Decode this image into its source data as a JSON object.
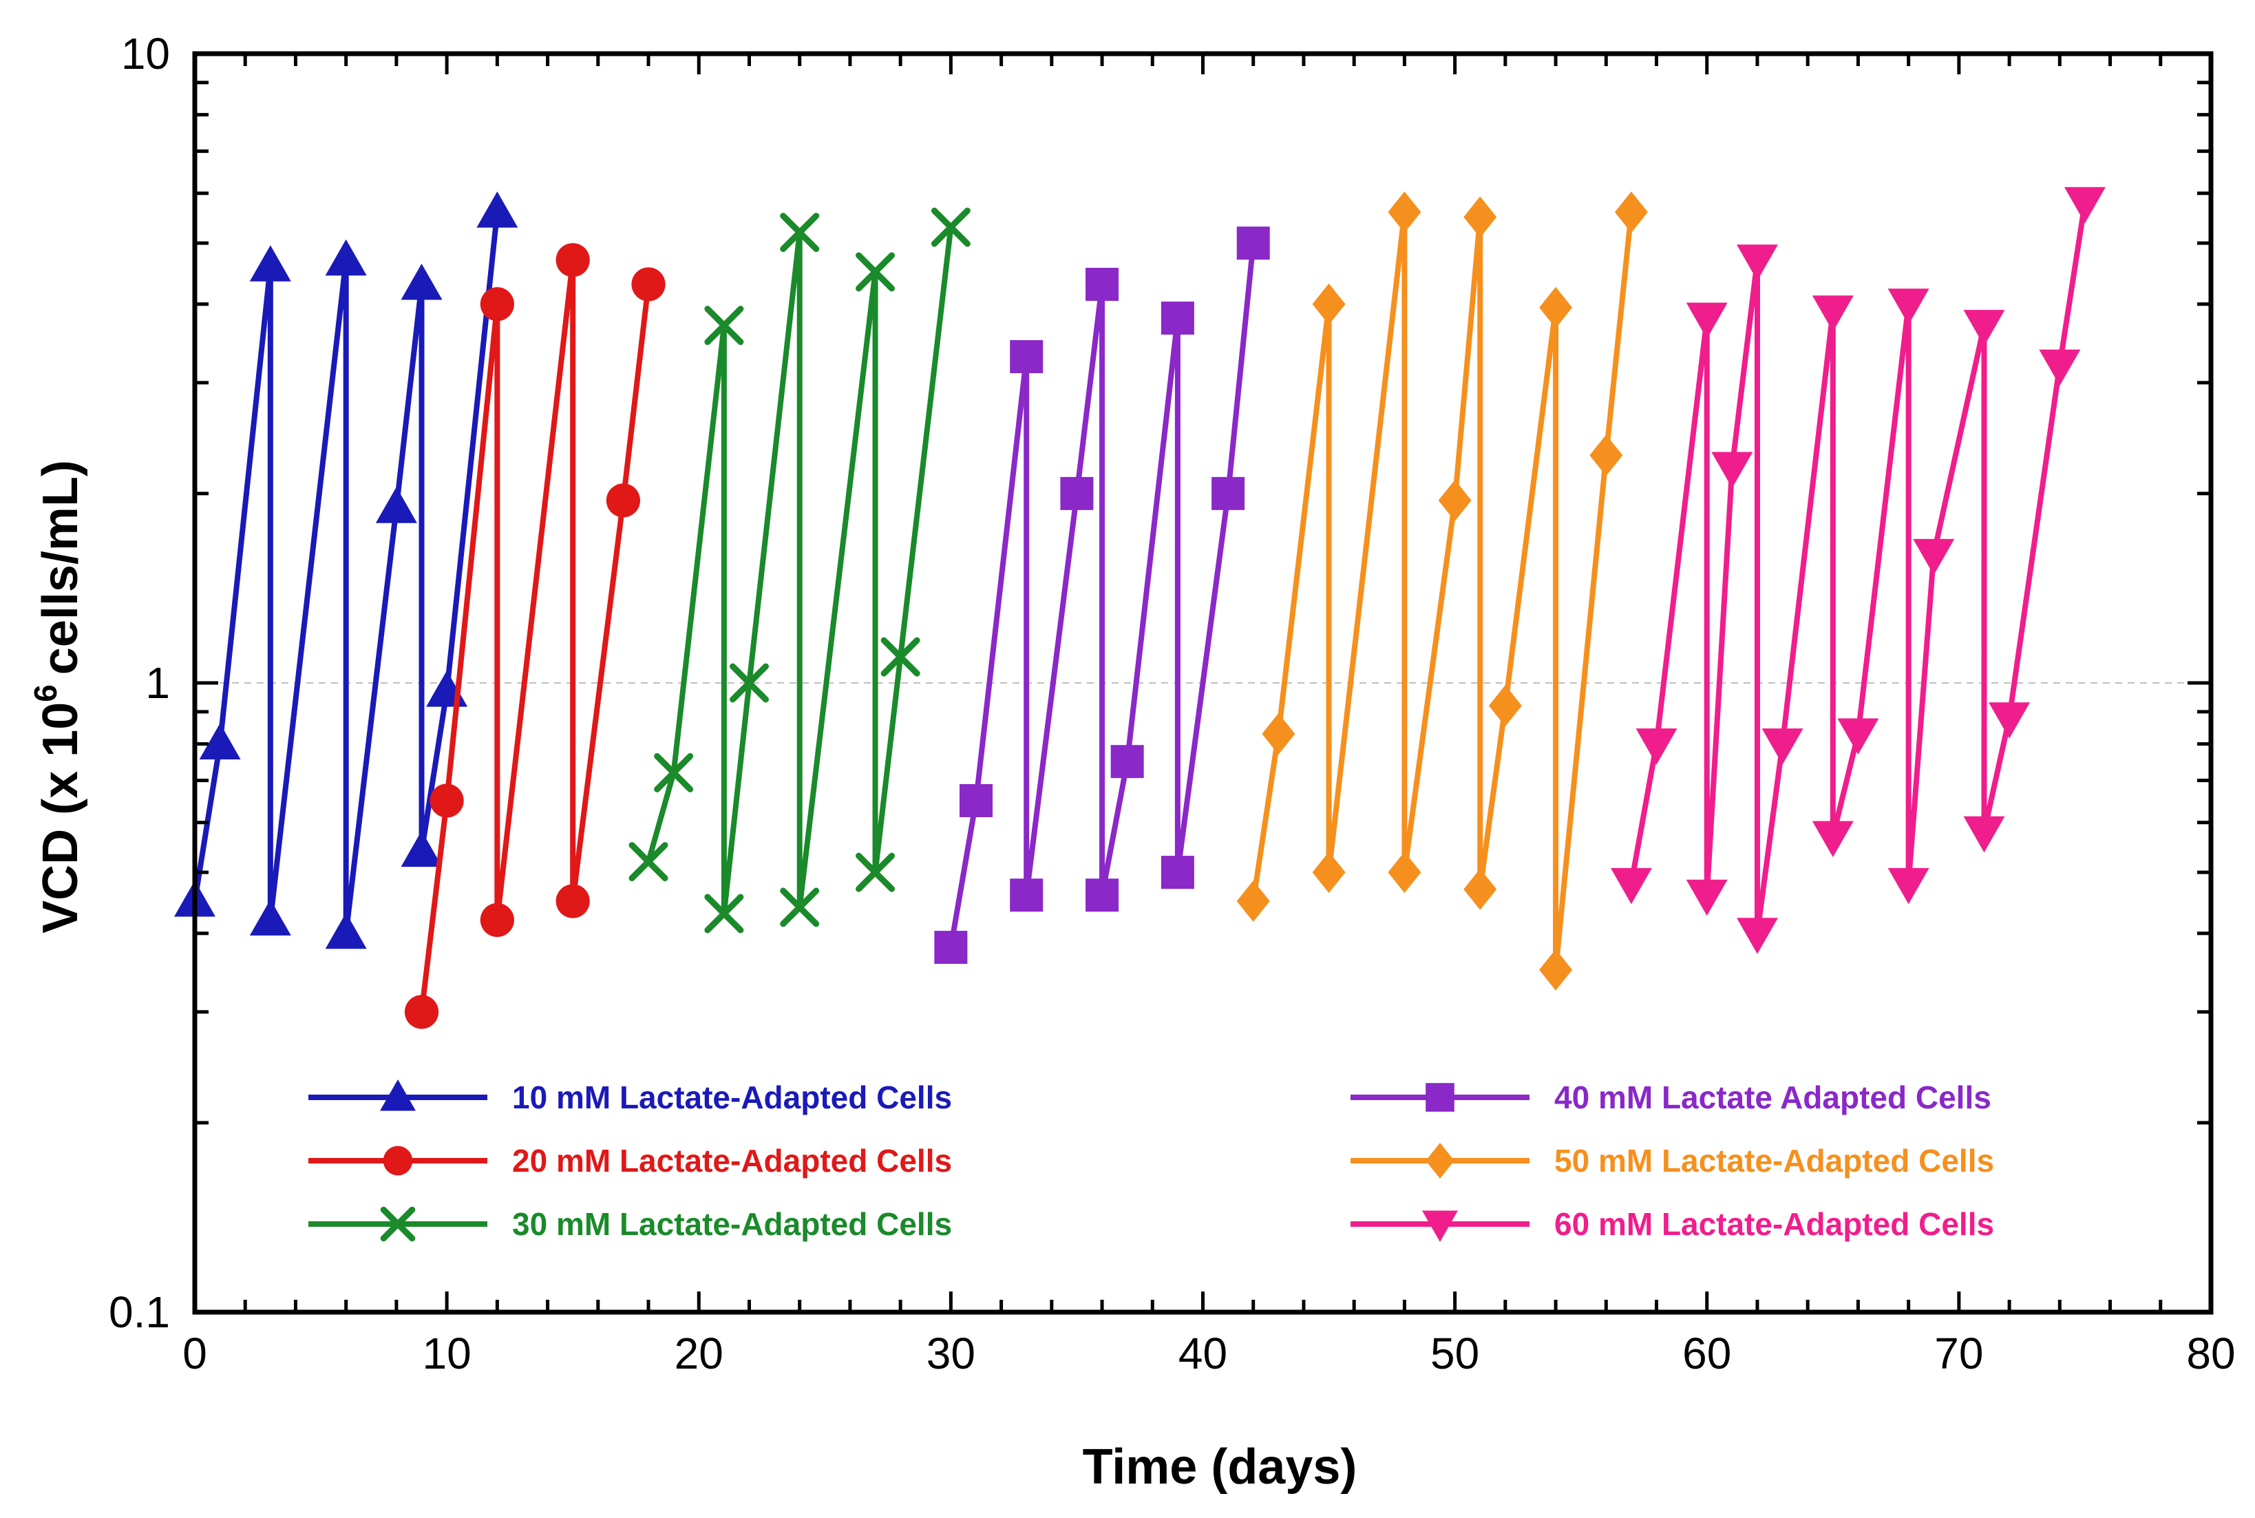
{
  "chart_data": {
    "type": "line",
    "title": "",
    "xlabel": "Time (days)",
    "ylabel": {
      "prefix": "VCD (x 10",
      "superscript": "6",
      "suffix": "cells/mL)"
    },
    "xlim": [
      0,
      80
    ],
    "ylim": [
      0.1,
      10
    ],
    "yscale": "log",
    "x_ticks": [
      0,
      10,
      20,
      30,
      40,
      50,
      60,
      70,
      80
    ],
    "x_tick_labels": [
      "0",
      "10",
      "20",
      "30",
      "40",
      "50",
      "60",
      "70",
      "80"
    ],
    "y_ticks": [
      0.1,
      1,
      10
    ],
    "y_tick_labels": [
      "0.1",
      "1",
      "10"
    ],
    "reference_line": 1,
    "series": [
      {
        "name": "10 mM Lactate-Adapted Cells",
        "color": "#1a1ab8",
        "marker": "triangle-up",
        "x": [
          0,
          1,
          3,
          3,
          6,
          6,
          8,
          9,
          9,
          10,
          12
        ],
        "y": [
          0.45,
          0.8,
          4.6,
          0.42,
          4.7,
          0.4,
          1.9,
          4.3,
          0.54,
          0.97,
          5.6
        ]
      },
      {
        "name": "20 mM Lactate-Adapted Cells",
        "color": "#e01818",
        "marker": "circle",
        "x": [
          9,
          10,
          12,
          12,
          15,
          15,
          17,
          18
        ],
        "y": [
          0.3,
          0.65,
          4.0,
          0.42,
          4.7,
          0.45,
          1.95,
          4.3
        ]
      },
      {
        "name": "30 mM Lactate-Adapted Cells",
        "color": "#1a8a2a",
        "marker": "x",
        "x": [
          18,
          19,
          21,
          21,
          22,
          24,
          24,
          27,
          27,
          28,
          30
        ],
        "y": [
          0.52,
          0.72,
          3.7,
          0.43,
          1.0,
          5.2,
          0.44,
          4.5,
          0.5,
          1.1,
          5.3
        ]
      },
      {
        "name": "40 mM Lactate Adapted Cells",
        "color": "#8a28c8",
        "marker": "square",
        "x": [
          30,
          31,
          33,
          33,
          35,
          36,
          36,
          37,
          39,
          39,
          41,
          42
        ],
        "y": [
          0.38,
          0.65,
          3.3,
          0.46,
          2.0,
          4.3,
          0.46,
          0.75,
          3.8,
          0.5,
          2.0,
          5.0
        ]
      },
      {
        "name": "50 mM Lactate-Adapted Cells",
        "color": "#f5901e",
        "marker": "diamond",
        "x": [
          42,
          43,
          45,
          45,
          48,
          48,
          50,
          51,
          51,
          52,
          54,
          54,
          56,
          57
        ],
        "y": [
          0.45,
          0.83,
          4.0,
          0.5,
          5.6,
          0.5,
          1.95,
          5.5,
          0.47,
          0.92,
          3.95,
          0.35,
          2.3,
          5.6
        ]
      },
      {
        "name": "60 mM Lactate-Adapted Cells",
        "color": "#f01e8c",
        "marker": "triangle-down",
        "x": [
          57,
          58,
          60,
          60,
          61,
          62,
          62,
          63,
          65,
          65,
          66,
          68,
          68,
          69,
          71,
          71,
          72,
          74,
          75
        ],
        "y": [
          0.48,
          0.8,
          3.8,
          0.46,
          2.2,
          4.7,
          0.4,
          0.8,
          3.9,
          0.57,
          0.83,
          4.0,
          0.48,
          1.6,
          3.7,
          0.58,
          0.88,
          3.2,
          5.8
        ]
      }
    ],
    "legend": {
      "placement": "bottom",
      "columns": 2
    }
  }
}
